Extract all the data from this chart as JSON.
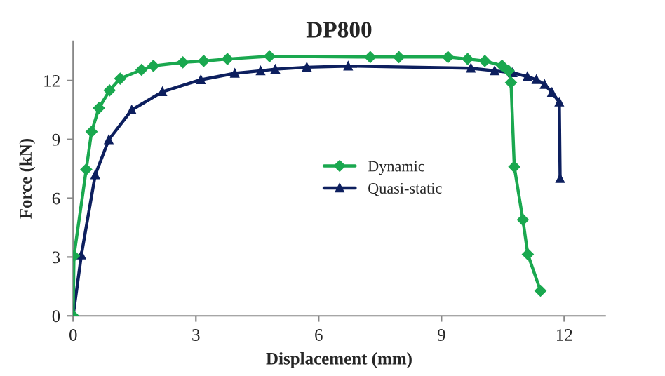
{
  "chart_data": {
    "type": "line",
    "title": "DP800",
    "xlabel": "Displacement (mm)",
    "ylabel": "Force (kN)",
    "xlim": [
      0,
      13
    ],
    "ylim": [
      0,
      14
    ],
    "xticks": [
      0,
      3,
      6,
      9,
      12
    ],
    "yticks": [
      0,
      3,
      6,
      9,
      12
    ],
    "grid": false,
    "legend": "right",
    "series": [
      {
        "name": "Dynamic",
        "color": "#1aa84f",
        "marker": "diamond",
        "x": [
          0,
          0.02,
          0.32,
          0.45,
          0.63,
          0.89,
          1.15,
          1.67,
          1.96,
          2.68,
          3.19,
          3.77,
          4.8,
          7.26,
          7.96,
          9.16,
          9.64,
          10.06,
          10.48,
          10.64,
          10.7,
          10.78,
          10.99,
          11.11,
          11.42
        ],
        "values": [
          0,
          3.06,
          7.47,
          9.39,
          10.6,
          11.5,
          12.1,
          12.55,
          12.75,
          12.93,
          13.0,
          13.1,
          13.24,
          13.2,
          13.2,
          13.2,
          13.1,
          13.0,
          12.76,
          12.5,
          11.9,
          7.6,
          4.9,
          3.14,
          1.28
        ]
      },
      {
        "name": "Quasi-static",
        "color": "#0d1f5e",
        "marker": "triangle",
        "x": [
          0,
          0.2,
          0.54,
          0.87,
          1.43,
          2.18,
          3.12,
          3.95,
          4.58,
          4.94,
          5.71,
          6.72,
          9.72,
          10.3,
          10.74,
          11.1,
          11.32,
          11.52,
          11.7,
          11.88,
          11.9
        ],
        "values": [
          0,
          3.1,
          7.19,
          8.98,
          10.5,
          11.43,
          12.04,
          12.37,
          12.5,
          12.58,
          12.68,
          12.74,
          12.63,
          12.5,
          12.4,
          12.2,
          12.05,
          11.8,
          11.4,
          10.9,
          7.0
        ]
      }
    ]
  }
}
